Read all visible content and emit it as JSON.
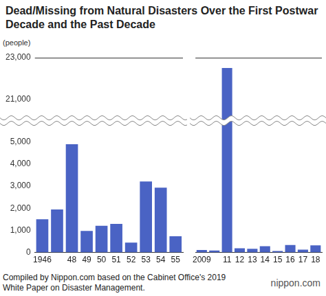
{
  "chart_data": [
    {
      "type": "bar",
      "title": "Dead/Missing from Natural Disasters Over the First Postwar Decade and the Past Decade",
      "ylabel": "(people)",
      "categories": [
        "1946",
        null,
        "48",
        "49",
        "50",
        "51",
        "52",
        "53",
        "54",
        "55"
      ],
      "values": [
        1500,
        1950,
        4900,
        975,
        1210,
        1290,
        450,
        3210,
        2930,
        730
      ],
      "color": "#4a63c4",
      "ylim": [
        0,
        23000
      ],
      "yticks": [
        0,
        {
          "value": 1000,
          "label": "1,000"
        },
        {
          "value": 2000,
          "label": "2,000"
        },
        {
          "value": 3000,
          "label": "3,000"
        },
        {
          "value": 4000,
          "label": "4,000"
        },
        {
          "value": 5000,
          "label": "5,000"
        },
        {
          "value": 21000,
          "label": "21,000"
        },
        {
          "value": 23000,
          "label": "23,000"
        }
      ],
      "grid": false
    },
    {
      "type": "bar",
      "categories": [
        "2009",
        null,
        "11",
        "12",
        "13",
        "14",
        "15",
        "16",
        "17",
        "18"
      ],
      "values": [
        115,
        90,
        22500,
        190,
        170,
        280,
        65,
        340,
        130,
        320
      ],
      "color": "#4a63c4",
      "ylim": [
        0,
        23000
      ],
      "yticks": [
        0,
        {
          "value": 1000,
          "label": "1,000"
        },
        {
          "value": 2000,
          "label": "2,000"
        },
        {
          "value": 3000,
          "label": "3,000"
        },
        {
          "value": 4000,
          "label": "4,000"
        },
        {
          "value": 5000,
          "label": "5,000"
        },
        {
          "value": 21000,
          "label": "21,000"
        },
        {
          "value": 23000,
          "label": "23,000"
        }
      ],
      "grid": false,
      "tick_labels": "x"
    }
  ],
  "source": "Compiled by Nippon.com based on the Cabinet Office's 2019 White Paper on Disaster Management.",
  "logo": "nippon.com"
}
